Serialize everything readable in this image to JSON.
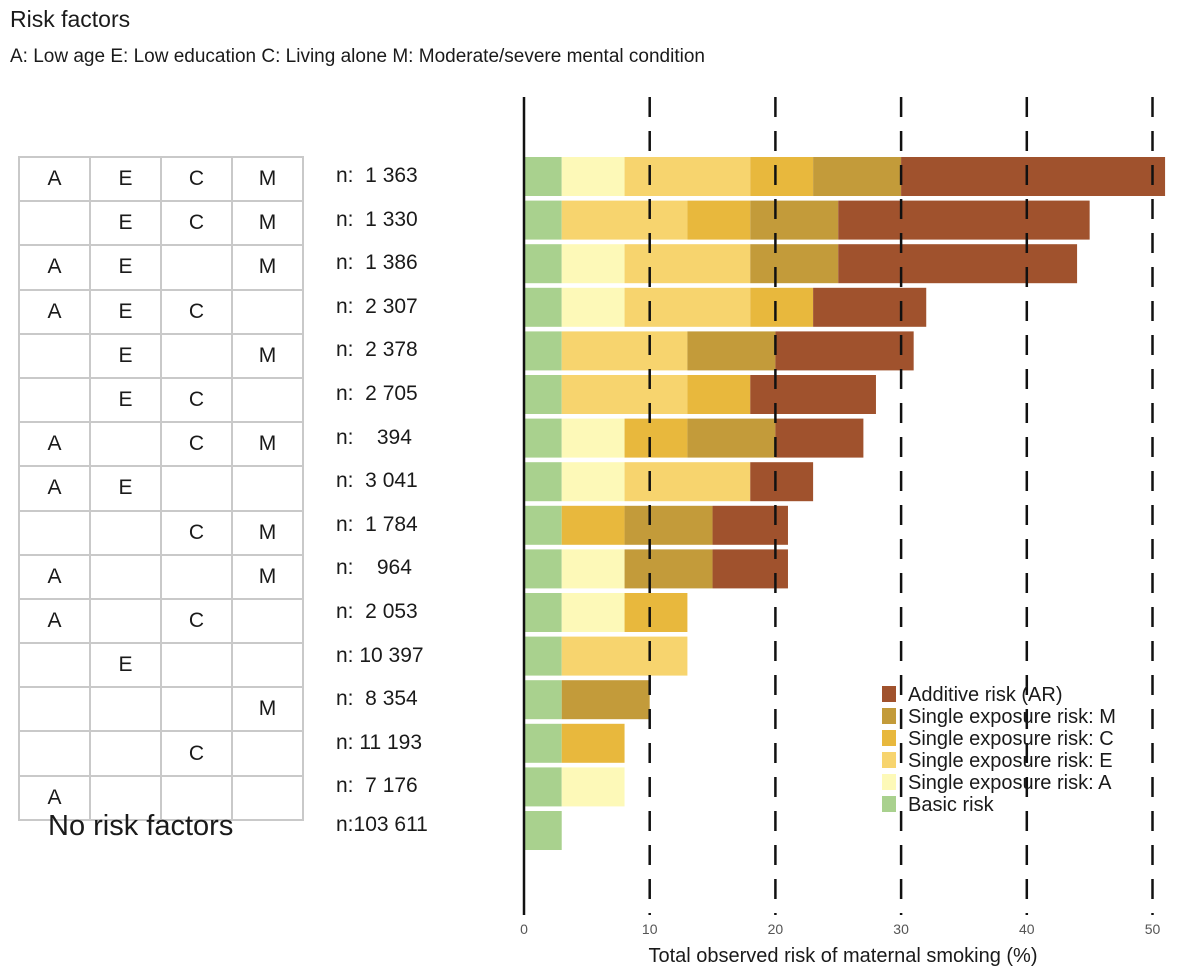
{
  "header": {
    "title": "Risk factors",
    "subtitle": "A: Low age E: Low education C: Living alone M: Moderate/severe mental condition"
  },
  "rows": [
    {
      "A": "A",
      "E": "E",
      "C": "C",
      "M": "M",
      "n": "n:  1 363"
    },
    {
      "A": "",
      "E": "E",
      "C": "C",
      "M": "M",
      "n": "n:  1 330"
    },
    {
      "A": "A",
      "E": "E",
      "C": "",
      "M": "M",
      "n": "n:  1 386"
    },
    {
      "A": "A",
      "E": "E",
      "C": "C",
      "M": "",
      "n": "n:  2 307"
    },
    {
      "A": "",
      "E": "E",
      "C": "",
      "M": "M",
      "n": "n:  2 378"
    },
    {
      "A": "",
      "E": "E",
      "C": "C",
      "M": "",
      "n": "n:  2 705"
    },
    {
      "A": "A",
      "E": "",
      "C": "C",
      "M": "M",
      "n": "n:    394"
    },
    {
      "A": "A",
      "E": "E",
      "C": "",
      "M": "",
      "n": "n:  3 041"
    },
    {
      "A": "",
      "E": "",
      "C": "C",
      "M": "M",
      "n": "n:  1 784"
    },
    {
      "A": "A",
      "E": "",
      "C": "",
      "M": "M",
      "n": "n:    964"
    },
    {
      "A": "A",
      "E": "",
      "C": "C",
      "M": "",
      "n": "n:  2 053"
    },
    {
      "A": "",
      "E": "E",
      "C": "",
      "M": "",
      "n": "n: 10 397"
    },
    {
      "A": "",
      "E": "",
      "C": "",
      "M": "M",
      "n": "n:  8 354"
    },
    {
      "A": "",
      "E": "",
      "C": "C",
      "M": "",
      "n": "n: 11 193"
    },
    {
      "A": "A",
      "E": "",
      "C": "",
      "M": "",
      "n": "n:  7 176"
    }
  ],
  "no_risk": {
    "label": "No risk factors",
    "n": "n:103 611"
  },
  "chart_data": {
    "type": "bar",
    "orientation": "horizontal",
    "stacked": true,
    "xlabel": "Total observed risk of maternal smoking (%)",
    "xlim": [
      0,
      52
    ],
    "xticks": [
      0,
      10,
      20,
      30,
      40,
      50
    ],
    "gridlines": "dashed vertical at 10, 20, 30, 40, 50",
    "legend_position": "bottom-right",
    "categories": [
      "AECM",
      "ECM",
      "AEM",
      "AEC",
      "EM",
      "EC",
      "ACM",
      "AE",
      "CM",
      "AM",
      "AC",
      "E",
      "M",
      "C",
      "A",
      "No risk factors"
    ],
    "series": [
      {
        "name": "Basic risk",
        "color": "#a9d18e",
        "values": [
          3,
          3,
          3,
          3,
          3,
          3,
          3,
          3,
          3,
          3,
          3,
          3,
          3,
          3,
          3,
          3
        ]
      },
      {
        "name": "Single exposure risk: A",
        "color": "#fdf9b8",
        "values": [
          5,
          0,
          5,
          5,
          0,
          0,
          5,
          5,
          0,
          5,
          5,
          0,
          0,
          0,
          5,
          0
        ]
      },
      {
        "name": "Single exposure risk: E",
        "color": "#f7d46e",
        "values": [
          10,
          10,
          10,
          10,
          10,
          10,
          0,
          10,
          0,
          0,
          0,
          10,
          0,
          0,
          0,
          0
        ]
      },
      {
        "name": "Single exposure risk: C",
        "color": "#e8b83d",
        "values": [
          5,
          5,
          0,
          5,
          0,
          5,
          5,
          0,
          5,
          0,
          5,
          0,
          0,
          5,
          0,
          0
        ]
      },
      {
        "name": "Single exposure risk: M",
        "color": "#c39b3a",
        "values": [
          7,
          7,
          7,
          0,
          7,
          0,
          7,
          0,
          7,
          7,
          0,
          0,
          7,
          0,
          0,
          0
        ]
      },
      {
        "name": "Additive risk (AR)",
        "color": "#a0522d",
        "values": [
          21,
          20,
          19,
          9,
          11,
          10,
          7,
          5,
          6,
          6,
          0,
          0,
          0,
          0,
          0,
          0
        ]
      }
    ]
  }
}
